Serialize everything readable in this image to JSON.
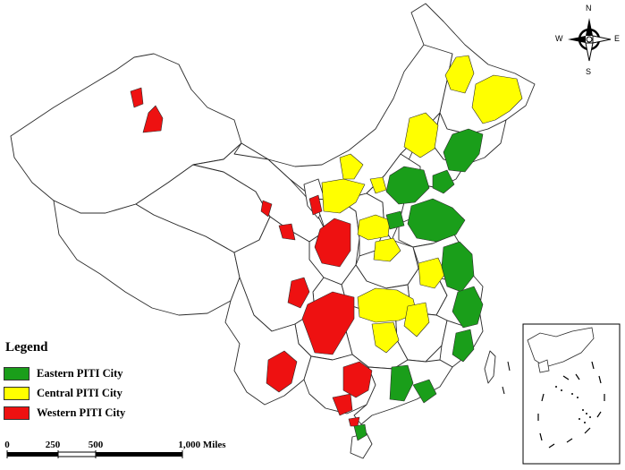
{
  "legend": {
    "title": "Legend",
    "items": [
      {
        "label": "Eastern PITI City",
        "color": "#1a9e1a"
      },
      {
        "label": "Central PITI City",
        "color": "#ffff00"
      },
      {
        "label": "Western PITI City",
        "color": "#ee1111"
      }
    ]
  },
  "scale_bar": {
    "ticks": [
      "0",
      "250",
      "500",
      "1,000 Miles"
    ]
  },
  "compass": {
    "north": "N",
    "south": "S",
    "east": "E",
    "west": "W"
  },
  "colors": {
    "eastern": "#1a9e1a",
    "central": "#ffff00",
    "western": "#ee1111",
    "boundary": "#2b2b2b"
  }
}
